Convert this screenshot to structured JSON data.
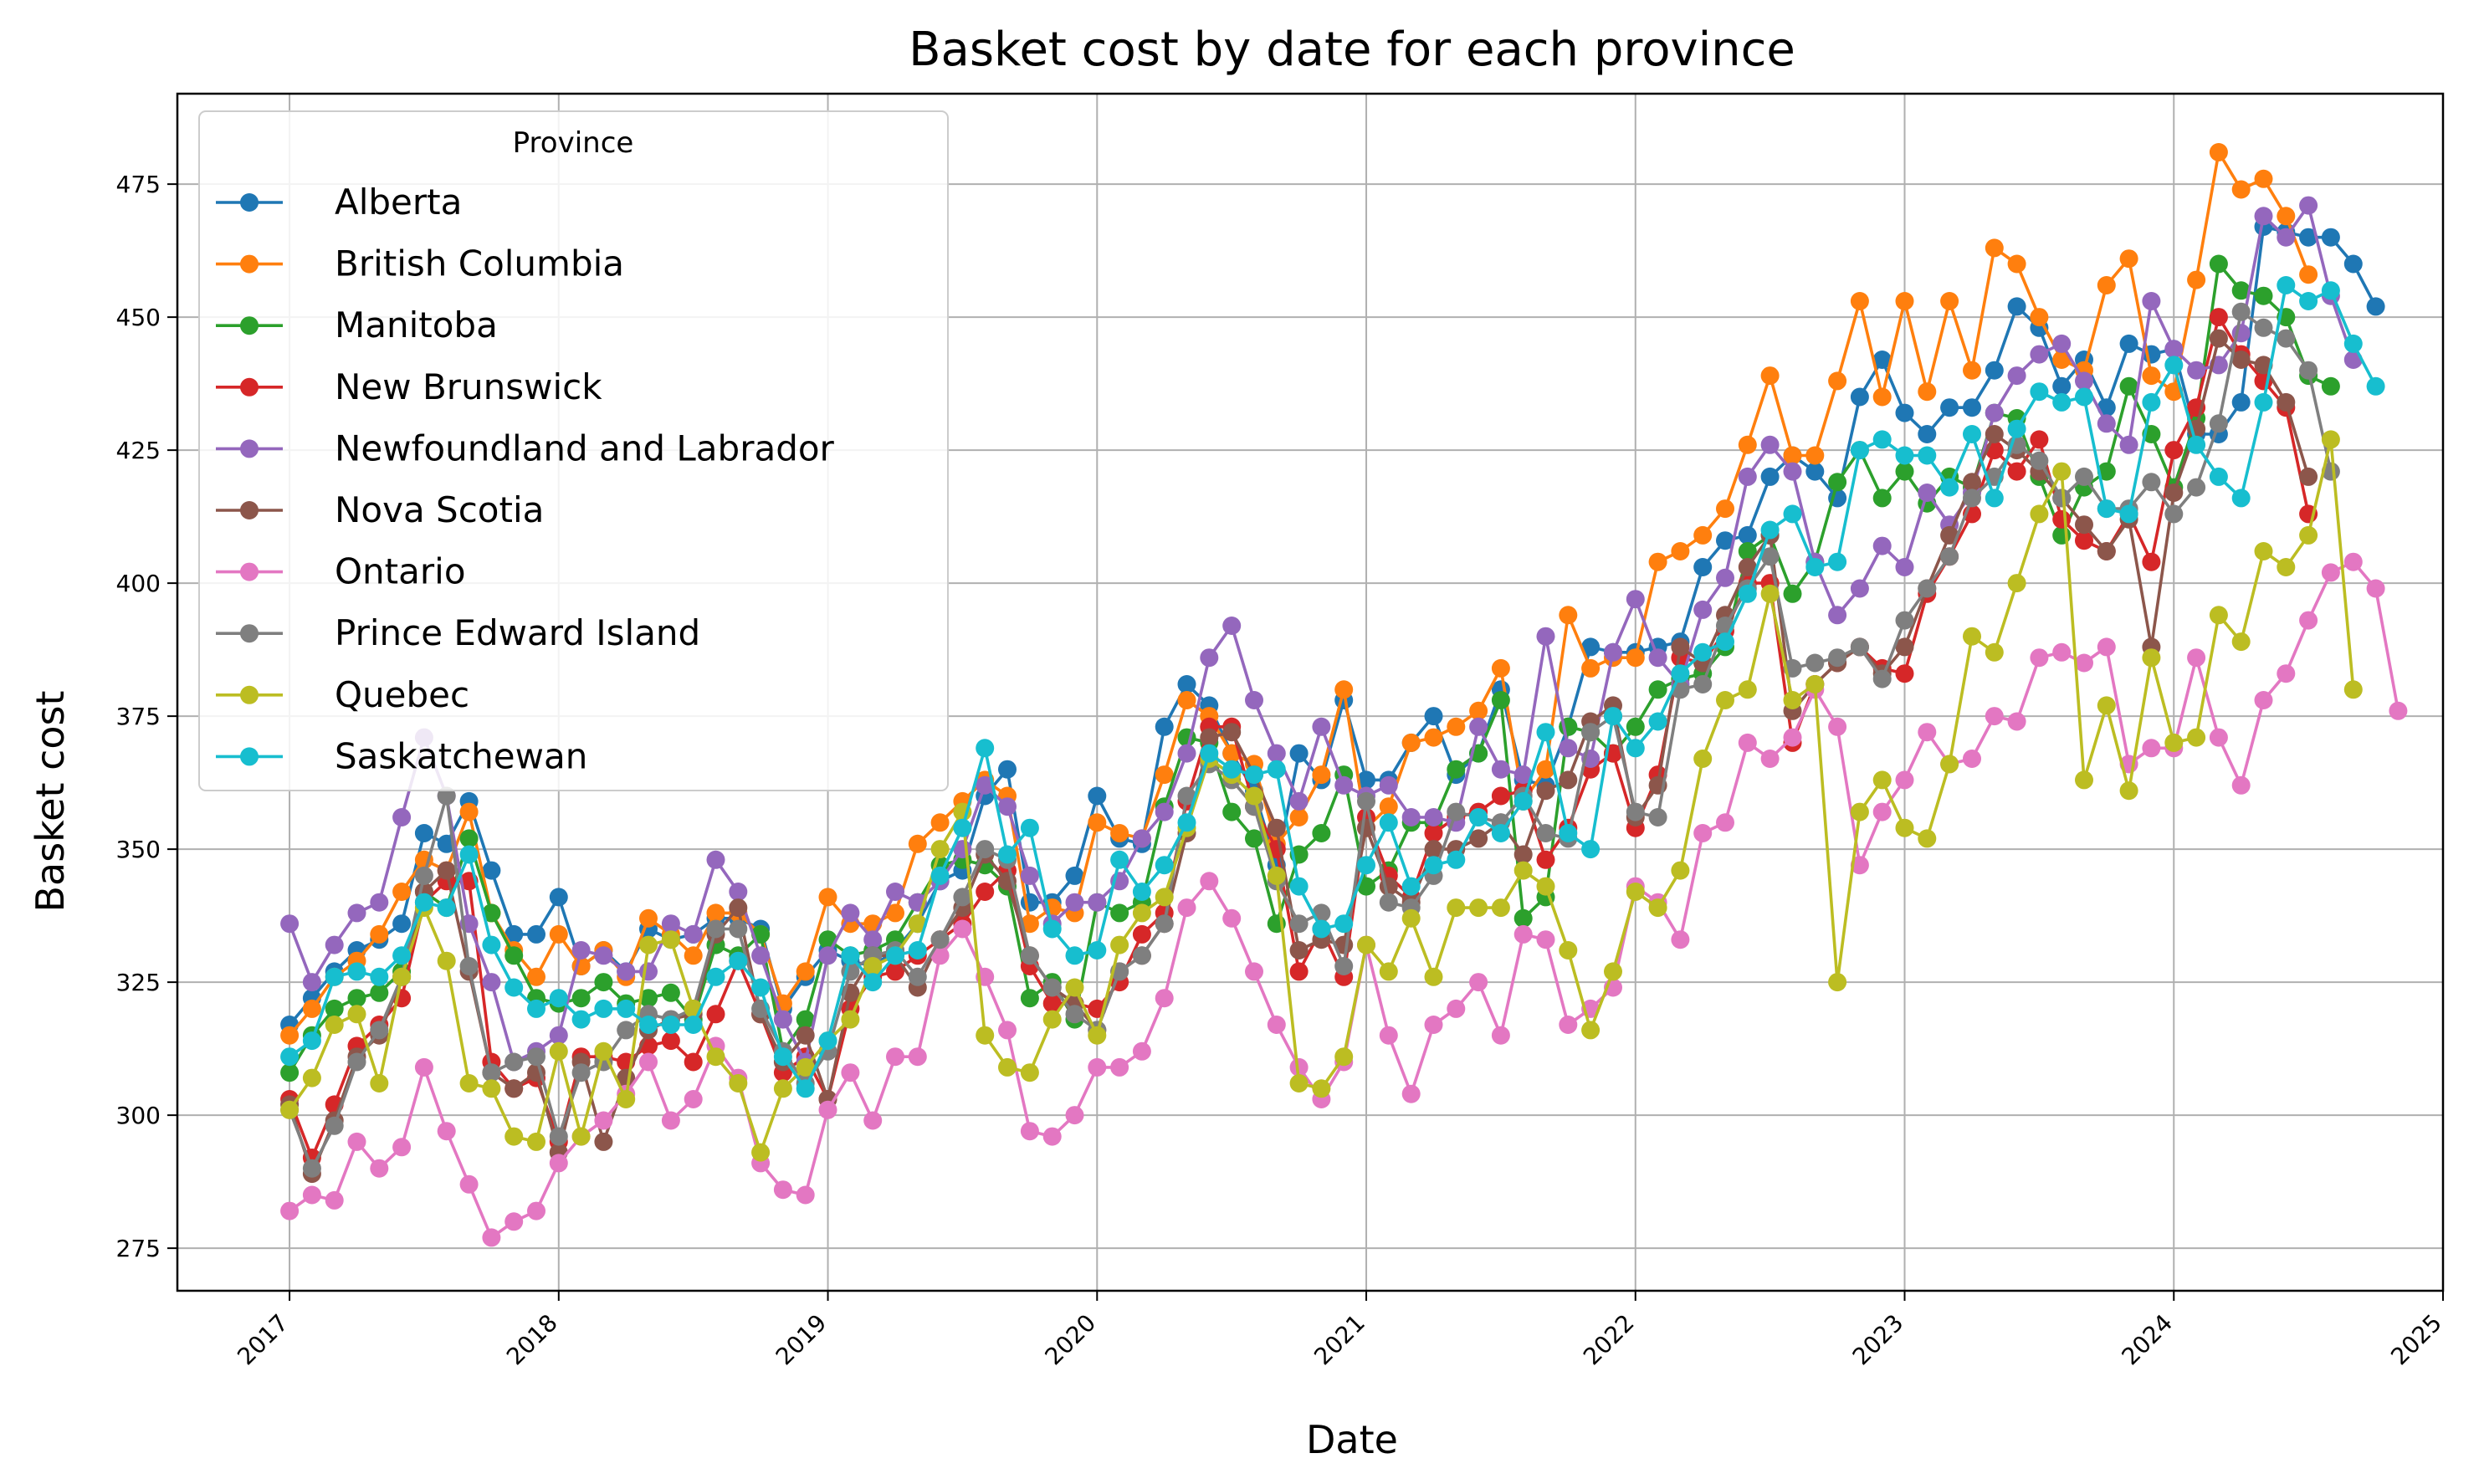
{
  "chart_data": {
    "type": "line",
    "title": "Basket cost by date for each province",
    "xlabel": "Date",
    "ylabel": "Basket cost",
    "x_ticks": [
      "2017",
      "2018",
      "2019",
      "2020",
      "2021",
      "2022",
      "2023",
      "2024",
      "2025"
    ],
    "y_ticks": [
      "275",
      "300",
      "325",
      "350",
      "375",
      "400",
      "425",
      "450",
      "475"
    ],
    "xlim": [
      "2016-08-01",
      "2025-01-01"
    ],
    "ylim": [
      267,
      492
    ],
    "grid": true,
    "legend": {
      "title": "Province",
      "placement": "top-left"
    },
    "x_start": "2017-01",
    "x_frequency": "monthly",
    "series": [
      {
        "name": "Alberta",
        "color": "#1f77b4",
        "values": [
          317,
          322,
          327,
          331,
          333,
          336,
          353,
          351,
          359,
          346,
          334,
          334,
          341,
          328,
          331,
          327,
          335,
          333,
          334,
          337,
          337,
          335,
          320,
          326,
          331,
          329,
          328,
          331,
          336,
          344,
          346,
          360,
          365,
          340,
          340,
          345,
          360,
          352,
          351,
          373,
          381,
          377,
          368,
          361,
          347,
          368,
          363,
          378,
          363,
          363,
          370,
          375,
          364,
          368,
          380,
          363,
          362,
          373,
          388,
          387,
          387,
          388,
          389,
          403,
          408,
          409,
          420,
          424,
          421,
          416,
          435,
          442,
          432,
          428,
          433,
          433,
          440,
          452,
          448,
          437,
          442,
          433,
          445,
          443,
          444,
          428,
          428,
          434,
          467,
          466,
          465,
          465,
          460,
          452
        ]
      },
      {
        "name": "British Columbia",
        "color": "#ff7f0e",
        "values": [
          315,
          320,
          326,
          329,
          334,
          342,
          348,
          346,
          357,
          338,
          331,
          326,
          334,
          328,
          331,
          326,
          337,
          334,
          330,
          338,
          338,
          334,
          321,
          327,
          341,
          336,
          336,
          338,
          351,
          355,
          359,
          363,
          360,
          336,
          339,
          338,
          355,
          353,
          352,
          364,
          378,
          375,
          368,
          366,
          351,
          356,
          364,
          380,
          354,
          358,
          370,
          371,
          373,
          376,
          384,
          359,
          365,
          394,
          384,
          386,
          386,
          404,
          406,
          409,
          414,
          426,
          439,
          424,
          424,
          438,
          453,
          435,
          453,
          436,
          453,
          440,
          463,
          460,
          450,
          442,
          440,
          456,
          461,
          439,
          436,
          457,
          481,
          474,
          476,
          469,
          458
        ]
      },
      {
        "name": "Manitoba",
        "color": "#2ca02c",
        "values": [
          308,
          315,
          320,
          322,
          323,
          327,
          342,
          339,
          352,
          338,
          330,
          322,
          321,
          322,
          325,
          321,
          322,
          323,
          318,
          332,
          330,
          334,
          312,
          318,
          333,
          330,
          331,
          333,
          340,
          347,
          348,
          347,
          343,
          322,
          325,
          318,
          340,
          338,
          340,
          358,
          371,
          370,
          357,
          352,
          336,
          349,
          353,
          364,
          343,
          346,
          355,
          355,
          365,
          368,
          378,
          337,
          341,
          373,
          372,
          368,
          373,
          380,
          382,
          383,
          388,
          406,
          409,
          398,
          404,
          419,
          425,
          416,
          421,
          415,
          420,
          418,
          432,
          431,
          420,
          409,
          418,
          421,
          437,
          428,
          418,
          431,
          460,
          455,
          454,
          450,
          439,
          437
        ]
      },
      {
        "name": "New Brunswick",
        "color": "#d62728",
        "values": [
          303,
          292,
          302,
          313,
          317,
          322,
          340,
          344,
          344,
          310,
          305,
          307,
          295,
          311,
          311,
          310,
          313,
          314,
          310,
          319,
          329,
          319,
          308,
          311,
          303,
          320,
          326,
          327,
          330,
          333,
          336,
          342,
          346,
          328,
          321,
          321,
          320,
          325,
          334,
          338,
          359,
          373,
          373,
          358,
          350,
          327,
          335,
          326,
          356,
          345,
          341,
          353,
          356,
          357,
          360,
          361,
          348,
          354,
          365,
          368,
          354,
          364,
          386,
          385,
          391,
          400,
          400,
          370,
          381,
          385,
          388,
          384,
          383,
          398,
          405,
          413,
          425,
          421,
          427,
          412,
          408,
          406,
          413,
          404,
          425,
          433,
          450,
          443,
          438,
          433,
          413
        ]
      },
      {
        "name": "Newfoundland and Labrador",
        "color": "#9467bd",
        "values": [
          336,
          325,
          332,
          338,
          340,
          356,
          371,
          360,
          336,
          325,
          310,
          312,
          315,
          331,
          330,
          327,
          327,
          336,
          334,
          348,
          342,
          330,
          318,
          310,
          330,
          338,
          333,
          342,
          340,
          344,
          350,
          362,
          358,
          345,
          336,
          340,
          340,
          344,
          352,
          357,
          368,
          386,
          392,
          378,
          368,
          359,
          373,
          362,
          360,
          362,
          356,
          356,
          355,
          373,
          365,
          364,
          390,
          369,
          367,
          387,
          397,
          386,
          381,
          395,
          401,
          420,
          426,
          421,
          404,
          394,
          399,
          407,
          403,
          417,
          411,
          417,
          432,
          439,
          443,
          445,
          438,
          430,
          426,
          453,
          444,
          440,
          441,
          447,
          469,
          465,
          471,
          454,
          442
        ]
      },
      {
        "name": "Nova Scotia",
        "color": "#8c564b",
        "values": [
          302,
          289,
          299,
          311,
          315,
          326,
          342,
          346,
          327,
          308,
          305,
          308,
          293,
          310,
          295,
          307,
          316,
          318,
          319,
          334,
          339,
          319,
          310,
          315,
          303,
          323,
          330,
          330,
          324,
          333,
          339,
          349,
          344,
          330,
          324,
          321,
          316,
          327,
          330,
          336,
          353,
          371,
          372,
          364,
          354,
          331,
          333,
          332,
          354,
          343,
          340,
          350,
          350,
          352,
          355,
          349,
          361,
          363,
          374,
          377,
          356,
          362,
          388,
          385,
          394,
          403,
          409,
          376,
          381,
          385,
          388,
          383,
          388,
          399,
          409,
          419,
          428,
          425,
          421,
          416,
          411,
          406,
          412,
          388,
          417,
          429,
          446,
          442,
          441,
          434,
          420
        ]
      },
      {
        "name": "Ontario",
        "color": "#e377c2",
        "values": [
          282,
          285,
          284,
          295,
          290,
          294,
          309,
          297,
          287,
          277,
          280,
          282,
          291,
          296,
          299,
          304,
          310,
          299,
          303,
          313,
          307,
          291,
          286,
          285,
          301,
          308,
          299,
          311,
          311,
          330,
          335,
          326,
          316,
          297,
          296,
          300,
          309,
          309,
          312,
          322,
          339,
          344,
          337,
          327,
          317,
          309,
          303,
          310,
          332,
          315,
          304,
          317,
          320,
          325,
          315,
          334,
          333,
          317,
          320,
          324,
          343,
          340,
          333,
          353,
          355,
          370,
          367,
          371,
          380,
          373,
          347,
          357,
          363,
          372,
          366,
          367,
          375,
          374,
          386,
          387,
          385,
          388,
          366,
          369,
          369,
          386,
          371,
          362,
          378,
          383,
          393,
          402,
          404,
          399,
          376
        ]
      },
      {
        "name": "Prince Edward Island",
        "color": "#7f7f7f",
        "values": [
          301,
          290,
          298,
          310,
          316,
          326,
          345,
          360,
          328,
          308,
          310,
          311,
          296,
          308,
          310,
          316,
          319,
          318,
          320,
          335,
          335,
          320,
          312,
          306,
          312,
          327,
          330,
          331,
          326,
          333,
          341,
          350,
          348,
          330,
          324,
          319,
          316,
          327,
          330,
          336,
          360,
          366,
          363,
          358,
          344,
          336,
          338,
          328,
          359,
          340,
          339,
          345,
          357,
          356,
          355,
          360,
          353,
          352,
          372,
          375,
          357,
          356,
          380,
          381,
          392,
          399,
          405,
          384,
          385,
          386,
          388,
          382,
          393,
          399,
          405,
          416,
          420,
          426,
          423,
          416,
          420,
          414,
          414,
          419,
          413,
          418,
          430,
          451,
          448,
          446,
          440,
          421
        ]
      },
      {
        "name": "Quebec",
        "color": "#bcbd22",
        "values": [
          301,
          307,
          317,
          319,
          306,
          326,
          339,
          329,
          306,
          305,
          296,
          295,
          312,
          296,
          312,
          303,
          332,
          333,
          320,
          311,
          306,
          293,
          305,
          309,
          314,
          318,
          328,
          330,
          336,
          350,
          357,
          315,
          309,
          308,
          318,
          324,
          315,
          332,
          338,
          341,
          354,
          367,
          364,
          360,
          345,
          306,
          305,
          311,
          332,
          327,
          337,
          326,
          339,
          339,
          339,
          346,
          343,
          331,
          316,
          327,
          342,
          339,
          346,
          367,
          378,
          380,
          398,
          378,
          381,
          325,
          357,
          363,
          354,
          352,
          366,
          390,
          387,
          400,
          413,
          421,
          363,
          377,
          361,
          386,
          370,
          371,
          394,
          389,
          406,
          403,
          409,
          427,
          380
        ]
      },
      {
        "name": "Saskatchewan",
        "color": "#17becf",
        "values": [
          311,
          314,
          326,
          327,
          326,
          330,
          340,
          339,
          349,
          332,
          324,
          320,
          322,
          318,
          320,
          320,
          317,
          317,
          317,
          326,
          329,
          324,
          311,
          305,
          314,
          330,
          325,
          330,
          331,
          345,
          354,
          369,
          349,
          354,
          335,
          330,
          331,
          348,
          342,
          347,
          355,
          368,
          365,
          364,
          365,
          343,
          335,
          336,
          347,
          355,
          343,
          347,
          348,
          356,
          353,
          359,
          372,
          353,
          350,
          375,
          369,
          374,
          383,
          387,
          389,
          398,
          410,
          413,
          403,
          404,
          425,
          427,
          424,
          424,
          418,
          428,
          416,
          429,
          436,
          434,
          435,
          414,
          413,
          434,
          441,
          426,
          420,
          416,
          434,
          456,
          453,
          455,
          445,
          437
        ]
      }
    ]
  }
}
